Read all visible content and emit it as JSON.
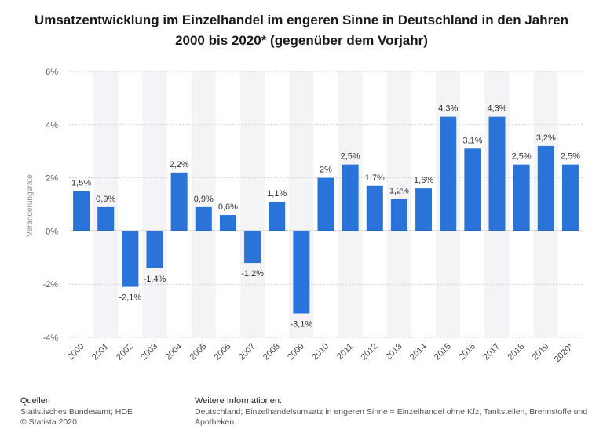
{
  "chart_data": {
    "type": "bar",
    "title": "Umsatzentwicklung im Einzelhandel im engeren Sinne in Deutschland in den Jahren 2000 bis 2020* (gegenüber dem Vorjahr)",
    "xlabel": "",
    "ylabel": "Veränderungsrate",
    "ylim": [
      -4,
      6
    ],
    "yticks": [
      6,
      4,
      2,
      0,
      -2,
      -4
    ],
    "ytick_labels": [
      "6%",
      "4%",
      "2%",
      "0%",
      "-2%",
      "-4%"
    ],
    "categories": [
      "2000",
      "2001",
      "2002",
      "2003",
      "2004",
      "2005",
      "2006",
      "2007",
      "2008",
      "2009",
      "2010",
      "2011",
      "2012",
      "2013",
      "2014",
      "2015",
      "2016",
      "2017",
      "2018",
      "2019",
      "2020*"
    ],
    "values": [
      1.5,
      0.9,
      -2.1,
      -1.4,
      2.2,
      0.9,
      0.6,
      -1.2,
      1.1,
      -3.1,
      2.0,
      2.5,
      1.7,
      1.2,
      1.6,
      4.3,
      3.1,
      4.3,
      2.5,
      3.2,
      2.5
    ],
    "value_labels": [
      "1,5%",
      "0,9%",
      "-2,1%",
      "-1,4%",
      "2,2%",
      "0,9%",
      "0,6%",
      "-1,2%",
      "1,1%",
      "-3,1%",
      "2%",
      "2,5%",
      "1,7%",
      "1,2%",
      "1,6%",
      "4,3%",
      "3,1%",
      "4,3%",
      "2,5%",
      "3,2%",
      "2,5%"
    ],
    "bar_color": "#2a73d9",
    "grid": true
  },
  "footer": {
    "sources_heading": "Quellen",
    "sources_line1": "Statistisches Bundesamt; HDE",
    "sources_line2": "© Statista 2020",
    "info_heading": "Weitere Informationen:",
    "info_text": "Deutschland; Einzelhandelsumsatz in engeren Sinne = Einzelhandel ohne Kfz, Tankstellen, Brennstoffe und Apotheken"
  }
}
